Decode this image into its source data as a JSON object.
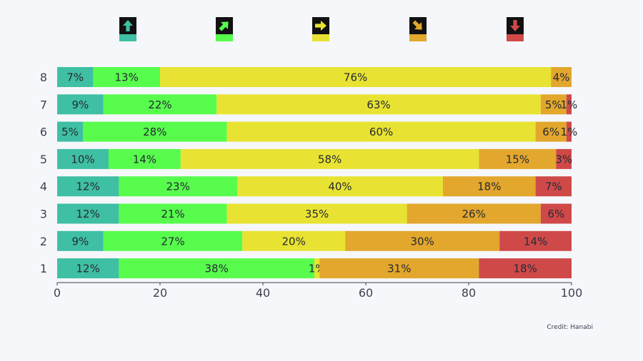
{
  "chart_data": {
    "type": "bar",
    "orientation": "horizontal",
    "stacked": true,
    "categories": [
      "8",
      "7",
      "6",
      "5",
      "4",
      "3",
      "2",
      "1"
    ],
    "series": [
      {
        "icon": "arrow-up-icon",
        "color": "#3fbfa3",
        "values": [
          7,
          9,
          5,
          10,
          12,
          12,
          9,
          12
        ]
      },
      {
        "icon": "arrow-up-right-icon",
        "color": "#57fc4d",
        "values": [
          13,
          22,
          28,
          14,
          23,
          21,
          27,
          38
        ]
      },
      {
        "icon": "arrow-right-icon",
        "color": "#e8e332",
        "values": [
          76,
          63,
          60,
          58,
          40,
          35,
          20,
          1
        ]
      },
      {
        "icon": "arrow-down-right-icon",
        "color": "#e2a72c",
        "values": [
          4,
          5,
          6,
          15,
          18,
          26,
          30,
          31
        ]
      },
      {
        "icon": "arrow-down-icon",
        "color": "#cf4949",
        "values": [
          0,
          1,
          1,
          3,
          7,
          6,
          14,
          18
        ]
      }
    ],
    "xlim": [
      0,
      100
    ],
    "xticks": [
      "0",
      "20",
      "40",
      "60",
      "80",
      "100"
    ],
    "grid": false,
    "legend": "top"
  },
  "credit": "Credit: Hanabi"
}
